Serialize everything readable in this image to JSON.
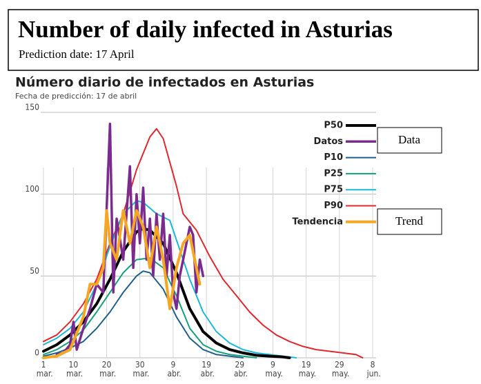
{
  "header": {
    "title": "Number of daily infected in Asturias",
    "subtitle": "Prediction date: 17 April"
  },
  "annotations": [
    "Data",
    "Trend"
  ],
  "chart_data": {
    "type": "line",
    "title": "Número diario de infectados en Asturias",
    "subtitle": "Fecha de predicción: 17 de abril",
    "xlim": [
      0,
      99
    ],
    "ylim": [
      0,
      150
    ],
    "yticks": [
      0,
      50,
      100,
      150
    ],
    "grid": true,
    "xticks": [
      {
        "value": 0,
        "label": "1 mar."
      },
      {
        "value": 9,
        "label": "10 mar."
      },
      {
        "value": 19,
        "label": "20 mar."
      },
      {
        "value": 29,
        "label": "30 mar."
      },
      {
        "value": 39,
        "label": "9 abr."
      },
      {
        "value": 49,
        "label": "19 abr."
      },
      {
        "value": 59,
        "label": "29 abr."
      },
      {
        "value": 69,
        "label": "9 may."
      },
      {
        "value": 79,
        "label": "19 may."
      },
      {
        "value": 89,
        "label": "29 may."
      },
      {
        "value": 99,
        "label": "8 jun."
      }
    ],
    "series": [
      {
        "name": "P50",
        "color": "#000000",
        "x": [
          0,
          4,
          8,
          12,
          16,
          20,
          24,
          28,
          30,
          32,
          36,
          40,
          44,
          48,
          52,
          56,
          60,
          64,
          68,
          72,
          74
        ],
        "values": [
          4,
          8,
          14,
          22,
          33,
          48,
          65,
          77,
          79,
          78,
          70,
          52,
          30,
          16,
          9,
          5,
          3,
          1.5,
          1,
          0.5,
          0
        ]
      },
      {
        "name": "Datos",
        "color": "#7b2a8e",
        "x": [
          4,
          6,
          8,
          9,
          10,
          12,
          14,
          16,
          18,
          20,
          21,
          22,
          24,
          26,
          27,
          28,
          29,
          30,
          31,
          32,
          33,
          34,
          35,
          36,
          37,
          38,
          39,
          40,
          41,
          42,
          43,
          44,
          45,
          46,
          47,
          48
        ],
        "values": [
          2,
          3,
          8,
          22,
          5,
          18,
          30,
          45,
          40,
          143,
          40,
          85,
          60,
          117,
          55,
          100,
          70,
          104,
          60,
          85,
          50,
          88,
          60,
          88,
          50,
          75,
          40,
          30,
          50,
          60,
          70,
          80,
          75,
          40,
          60,
          50
        ]
      },
      {
        "name": "P10",
        "color": "#1f5f8b",
        "x": [
          0,
          4,
          8,
          12,
          16,
          20,
          24,
          28,
          30,
          32,
          36,
          40,
          44,
          48,
          52,
          56,
          60
        ],
        "values": [
          1,
          3,
          6,
          10,
          18,
          28,
          40,
          50,
          53,
          52,
          42,
          25,
          12,
          5,
          2,
          1,
          0
        ]
      },
      {
        "name": "P25",
        "color": "#13a07a",
        "x": [
          0,
          4,
          8,
          12,
          16,
          20,
          24,
          28,
          32,
          36,
          40,
          44,
          48,
          52,
          56,
          60,
          64
        ],
        "values": [
          2,
          5,
          10,
          17,
          28,
          40,
          52,
          60,
          61,
          55,
          38,
          18,
          8,
          4,
          2,
          1,
          0
        ]
      },
      {
        "name": "P75",
        "color": "#1ab8d8",
        "x": [
          0,
          4,
          8,
          12,
          16,
          20,
          24,
          28,
          30,
          34,
          38,
          40,
          44,
          48,
          52,
          56,
          60,
          64,
          68,
          72,
          76
        ],
        "values": [
          8,
          12,
          18,
          28,
          45,
          68,
          88,
          96,
          95,
          88,
          84,
          72,
          48,
          28,
          16,
          9,
          5,
          3,
          2,
          1,
          0
        ]
      },
      {
        "name": "P90",
        "color": "#e0282e",
        "x": [
          0,
          4,
          8,
          12,
          16,
          20,
          24,
          28,
          32,
          34,
          36,
          40,
          42,
          46,
          50,
          54,
          58,
          62,
          66,
          70,
          74,
          78,
          82,
          86,
          90,
          94,
          96
        ],
        "values": [
          10,
          14,
          22,
          33,
          48,
          70,
          88,
          115,
          135,
          140,
          134,
          105,
          88,
          78,
          62,
          48,
          38,
          28,
          20,
          14,
          10,
          7,
          5,
          4,
          3,
          2,
          0
        ]
      },
      {
        "name": "Tendencia",
        "color": "#f5a623",
        "x": [
          0,
          4,
          8,
          12,
          14,
          16,
          18,
          19,
          20,
          22,
          24,
          26,
          28,
          30,
          32,
          34,
          36,
          38,
          40,
          42,
          44,
          46,
          47
        ],
        "values": [
          0,
          1,
          5,
          25,
          45,
          45,
          55,
          90,
          70,
          60,
          90,
          70,
          90,
          80,
          55,
          80,
          60,
          30,
          55,
          70,
          75,
          55,
          45
        ]
      }
    ]
  }
}
